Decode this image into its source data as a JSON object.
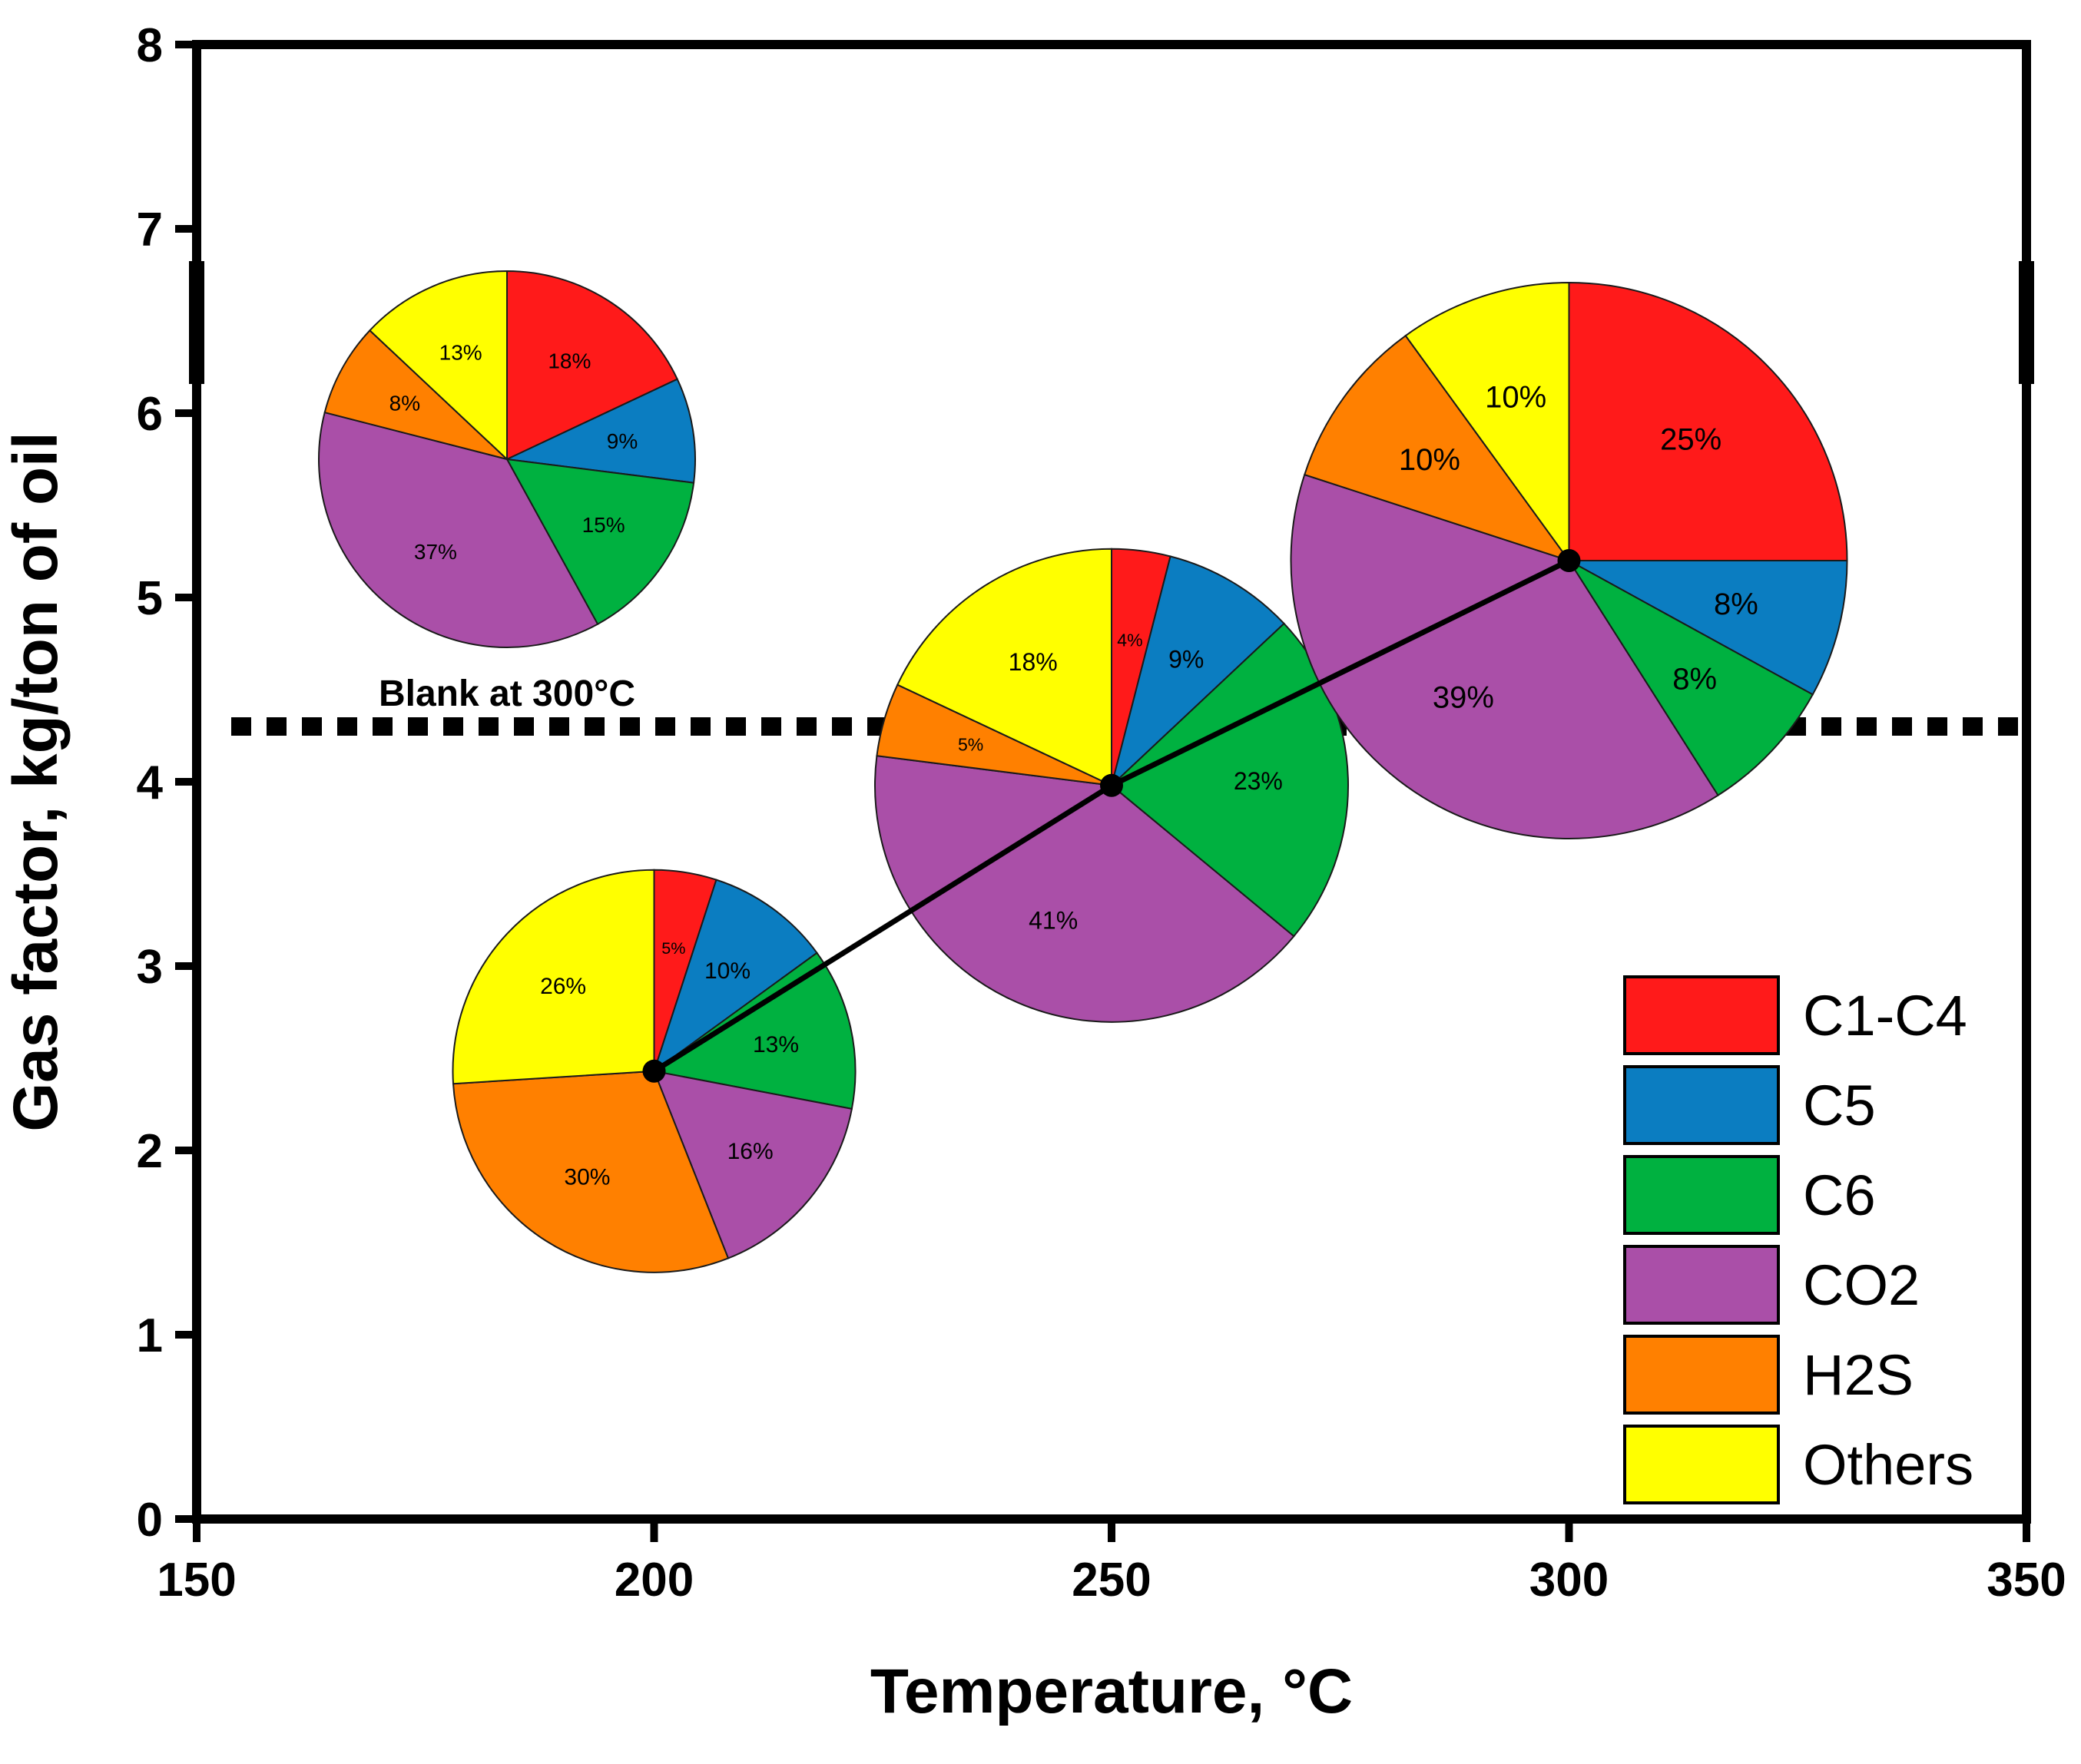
{
  "chart_data": {
    "type": "scatter",
    "title": "",
    "xlabel": "Temperature, °C",
    "ylabel": "Gas factor, kg/ton of oil",
    "xlim": [
      150,
      350
    ],
    "ylim": [
      0,
      8
    ],
    "xticks": [
      "150",
      "200",
      "250",
      "300",
      "350"
    ],
    "yticks": [
      "0",
      "1",
      "2",
      "3",
      "4",
      "5",
      "6",
      "7",
      "8"
    ],
    "grid": false,
    "blank_line": {
      "y": 4.3,
      "style": "dotted"
    },
    "categories": [
      "C1-C4",
      "C5",
      "C6",
      "CO2",
      "H2S",
      "Others"
    ],
    "colors": {
      "C1-C4": "#ff1a1a",
      "C5": "#0b7dc1",
      "C6": "#00b140",
      "CO2": "#aa4fa8",
      "H2S": "#ff8000",
      "Others": "#ffff00"
    },
    "series": [
      {
        "name": "Gas factor",
        "x": [
          200,
          250,
          300
        ],
        "y": [
          2.43,
          3.98,
          5.2
        ],
        "line": true,
        "marker": "circle"
      }
    ],
    "pies": [
      {
        "name": "200 °C",
        "x": 200,
        "y": 2.43,
        "values": [
          5,
          10,
          13,
          16,
          30,
          26
        ],
        "labels": [
          "5%",
          "10%",
          "13%",
          "16%",
          "30%",
          "26%"
        ]
      },
      {
        "name": "250 °C",
        "x": 250,
        "y": 3.98,
        "values": [
          4,
          9,
          23,
          41,
          5,
          18
        ],
        "labels": [
          "4%",
          "9%",
          "23%",
          "41%",
          "5%",
          "18%"
        ]
      },
      {
        "name": "300 °C",
        "x": 300,
        "y": 5.2,
        "values": [
          25,
          8,
          8,
          39,
          10,
          10
        ],
        "labels": [
          "25%",
          "8%",
          "8%",
          "39%",
          "10%",
          "10%"
        ]
      },
      {
        "name": "Blank at 300°C",
        "caption": "Blank at 300°C",
        "values": [
          18,
          9,
          15,
          37,
          8,
          13
        ],
        "labels": [
          "18%",
          "9%",
          "15%",
          "37%",
          "8%",
          "13%"
        ]
      }
    ],
    "legend": {
      "position": "bottom-right",
      "entries": [
        "C1-C4",
        "C5",
        "C6",
        "CO2",
        "H2S",
        "Others"
      ]
    }
  }
}
